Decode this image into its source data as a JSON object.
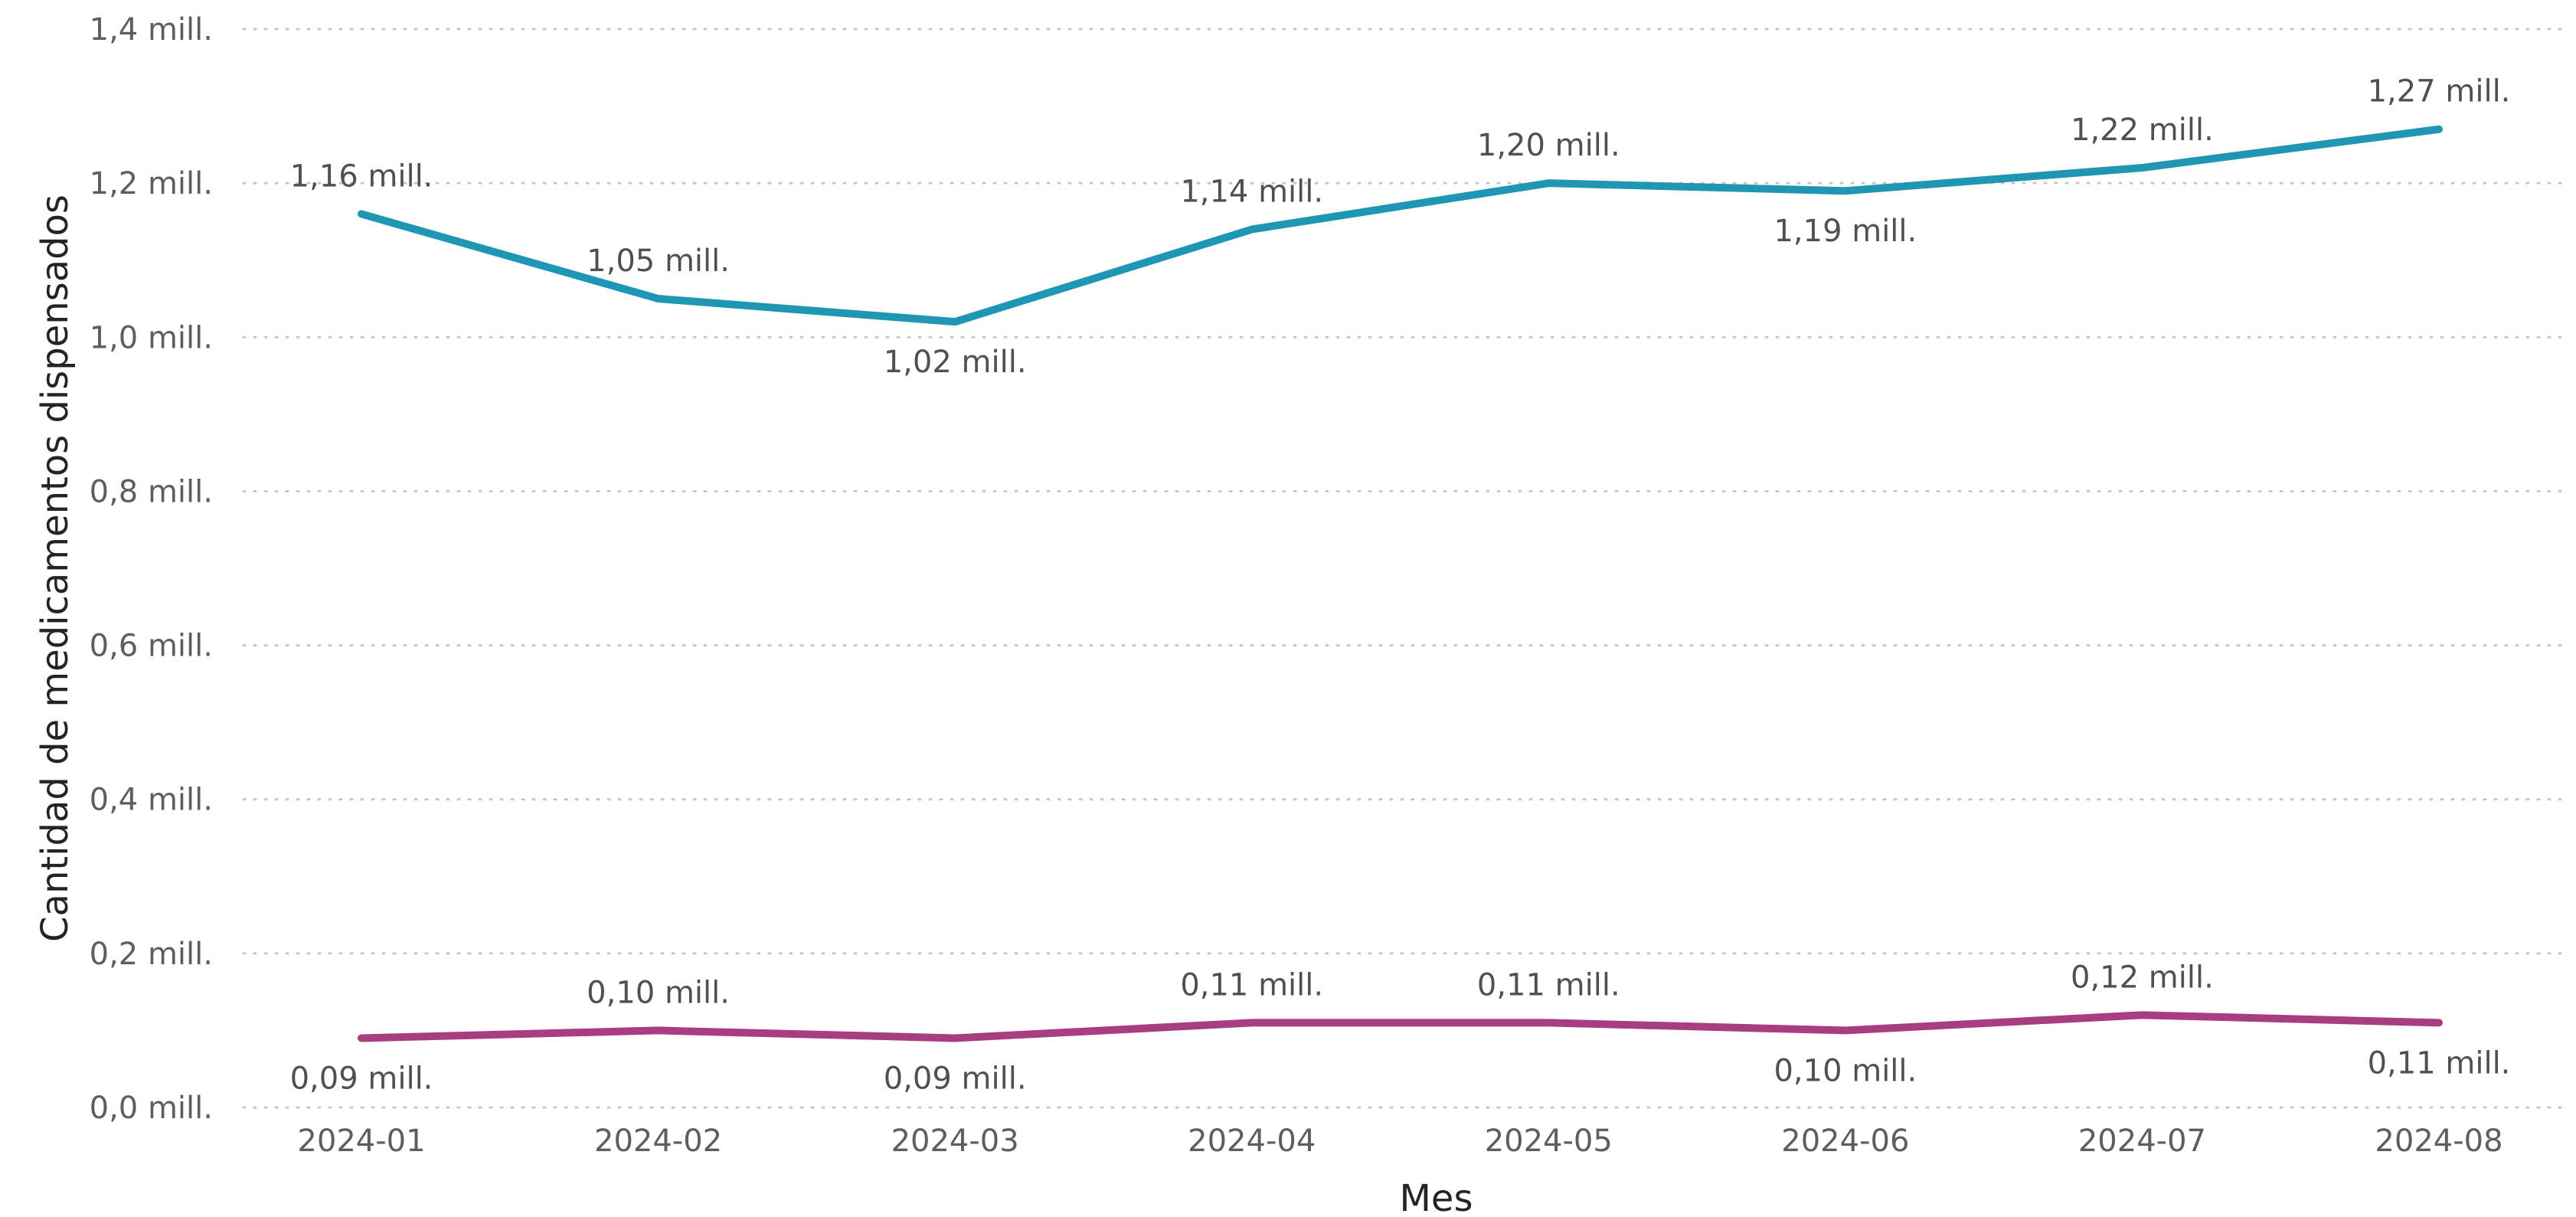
{
  "chart_data": {
    "type": "line",
    "title": "",
    "xlabel": "Mes",
    "ylabel": "Cantidad de medicamentos dispensados",
    "categories": [
      "2024-01",
      "2024-02",
      "2024-03",
      "2024-04",
      "2024-05",
      "2024-06",
      "2024-07",
      "2024-08"
    ],
    "y_ticks": [
      "0,0 mill.",
      "0,2 mill.",
      "0,4 mill.",
      "0,6 mill.",
      "0,8 mill.",
      "1,0 mill.",
      "1,2 mill.",
      "1,4 mill."
    ],
    "ylim": [
      0,
      1.4
    ],
    "y_unit": "mill.",
    "grid": true,
    "series": [
      {
        "color": "#1F97B4",
        "values": [
          1.16,
          1.05,
          1.02,
          1.14,
          1.2,
          1.19,
          1.22,
          1.27
        ],
        "labels": [
          "1,16 mill.",
          "1,05 mill.",
          "1,02 mill.",
          "1,14 mill.",
          "1,20 mill.",
          "1,19 mill.",
          "1,22 mill.",
          "1,27 mill."
        ],
        "label_positions": [
          "above",
          "above",
          "below",
          "above",
          "above",
          "below",
          "above",
          "above"
        ]
      },
      {
        "color": "#A83E82",
        "values": [
          0.09,
          0.1,
          0.09,
          0.11,
          0.11,
          0.1,
          0.12,
          0.11
        ],
        "labels": [
          "0,09 mill.",
          "0,10 mill.",
          "0,09 mill.",
          "0,11 mill.",
          "0,11 mill.",
          "0,10 mill.",
          "0,12 mill.",
          "0,11 mill."
        ],
        "label_positions": [
          "below",
          "above",
          "below",
          "above",
          "above",
          "below",
          "above",
          "below"
        ]
      }
    ]
  }
}
